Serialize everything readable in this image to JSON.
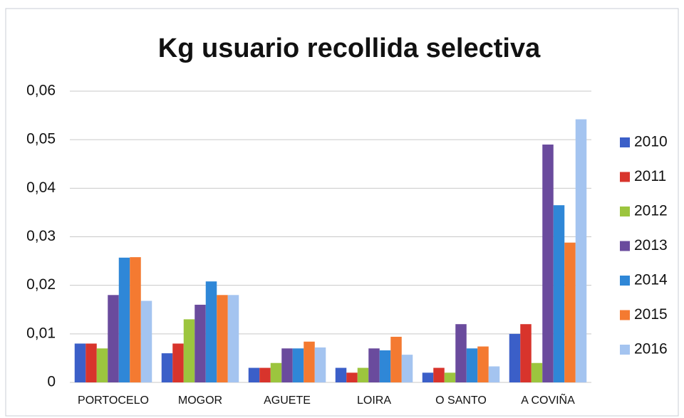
{
  "chart_data": {
    "type": "bar",
    "title": "Kg usuario recollida selectiva",
    "categories": [
      "PORTOCELO",
      "MOGOR",
      "AGUETE",
      "LOIRA",
      "O SANTO",
      "A COVIÑA"
    ],
    "series": [
      {
        "name": "2010",
        "color": "#3b5fc8",
        "values": [
          0.008,
          0.006,
          0.003,
          0.003,
          0.002,
          0.01
        ]
      },
      {
        "name": "2011",
        "color": "#d8342c",
        "values": [
          0.008,
          0.008,
          0.003,
          0.002,
          0.003,
          0.012
        ]
      },
      {
        "name": "2012",
        "color": "#9cc53e",
        "values": [
          0.007,
          0.013,
          0.004,
          0.003,
          0.002,
          0.004
        ]
      },
      {
        "name": "2013",
        "color": "#6a4b9d",
        "values": [
          0.018,
          0.016,
          0.007,
          0.007,
          0.012,
          0.049
        ]
      },
      {
        "name": "2014",
        "color": "#2f87d7",
        "values": [
          0.0257,
          0.0208,
          0.007,
          0.0066,
          0.007,
          0.0365
        ]
      },
      {
        "name": "2015",
        "color": "#f47a31",
        "values": [
          0.0258,
          0.018,
          0.0084,
          0.0094,
          0.0074,
          0.0288
        ]
      },
      {
        "name": "2016",
        "color": "#a4c4f0",
        "values": [
          0.0168,
          0.018,
          0.0072,
          0.0057,
          0.0033,
          0.0542
        ]
      }
    ],
    "ylim": [
      0,
      0.06
    ],
    "yticks": [
      0,
      {
        "value": 0.01,
        "label": "0,01"
      },
      {
        "value": 0.02,
        "label": "0,02"
      },
      {
        "value": 0.03,
        "label": "0,03"
      },
      {
        "value": 0.04,
        "label": "0,04"
      },
      {
        "value": 0.05,
        "label": "0,05"
      },
      {
        "value": 0.06,
        "label": "0,06"
      }
    ],
    "grid": true,
    "legend": "right"
  }
}
